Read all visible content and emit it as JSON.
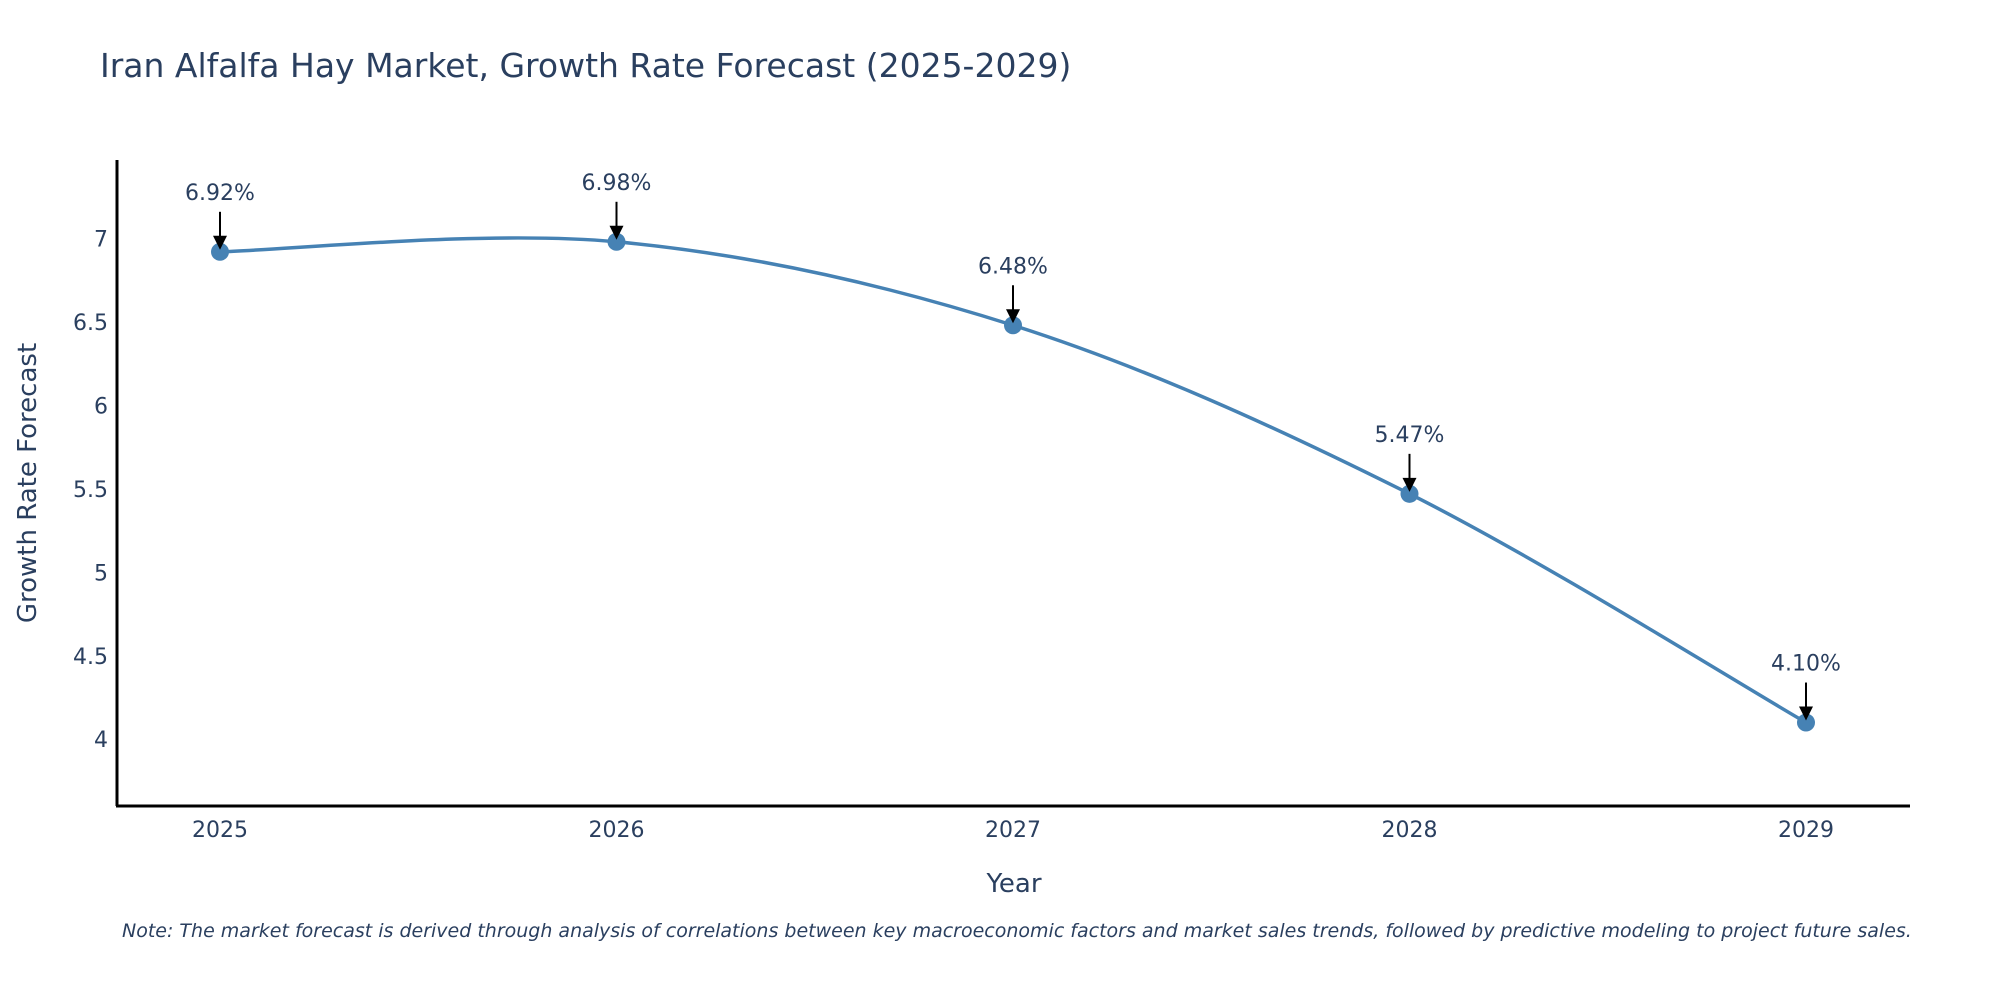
{
  "chart_data": {
    "type": "line",
    "title": "Iran Alfalfa Hay Market, Growth Rate Forecast (2025-2029)",
    "xlabel": "Year",
    "ylabel": "Growth Rate Forecast",
    "categories": [
      "2025",
      "2026",
      "2027",
      "2028",
      "2029"
    ],
    "series": [
      {
        "name": "Growth Rate Forecast",
        "values": [
          6.92,
          6.98,
          6.48,
          5.47,
          4.1
        ]
      }
    ],
    "data_labels": [
      "6.92%",
      "6.98%",
      "6.48%",
      "5.47%",
      "4.10%"
    ],
    "yticks": [
      4,
      4.5,
      5,
      5.5,
      6,
      6.5,
      7
    ],
    "ytick_labels": [
      "4",
      "4.5",
      "5",
      "5.5",
      "6",
      "6.5",
      "7"
    ],
    "ylim": [
      3.6,
      7.47
    ],
    "grid": false,
    "line_color": "#4682b4",
    "marker_color": "#4682b4",
    "note": "Note: The market forecast is derived through analysis of correlations between key macroeconomic factors and market sales trends, followed by predictive modeling to project future sales."
  }
}
